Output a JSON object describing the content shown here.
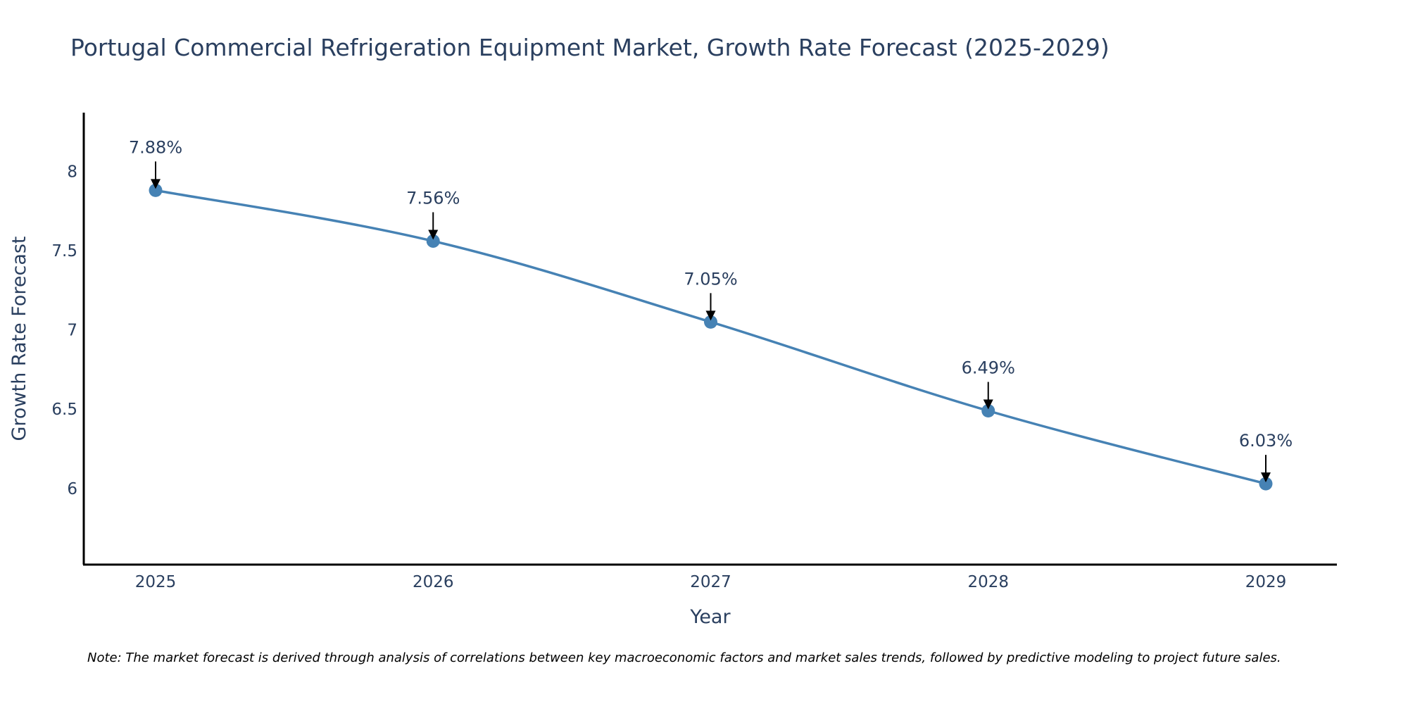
{
  "chart_data": {
    "type": "line",
    "title": "Portugal Commercial Refrigeration Equipment Market, Growth Rate Forecast (2025-2029)",
    "xlabel": "Year",
    "ylabel": "Growth Rate Forecast",
    "categories": [
      "2025",
      "2026",
      "2027",
      "2028",
      "2029"
    ],
    "series": [
      {
        "name": "Growth Rate Forecast",
        "values": [
          7.88,
          7.56,
          7.05,
          6.49,
          6.03
        ],
        "labels": [
          "7.88%",
          "7.56%",
          "7.05%",
          "6.49%",
          "6.03%"
        ]
      }
    ],
    "ylim": [
      5.52,
      8.37
    ],
    "yticks": [
      6,
      6.5,
      7,
      7.5,
      8
    ],
    "ytick_labels": [
      "6",
      "6.5",
      "7",
      "7.5",
      "8"
    ],
    "grid": false,
    "line_color": "#4682b4",
    "marker_color": "#4682b4",
    "note": "Note: The market forecast is derived through analysis of correlations between key macroeconomic factors and market sales trends, followed by predictive modeling to project future sales."
  }
}
